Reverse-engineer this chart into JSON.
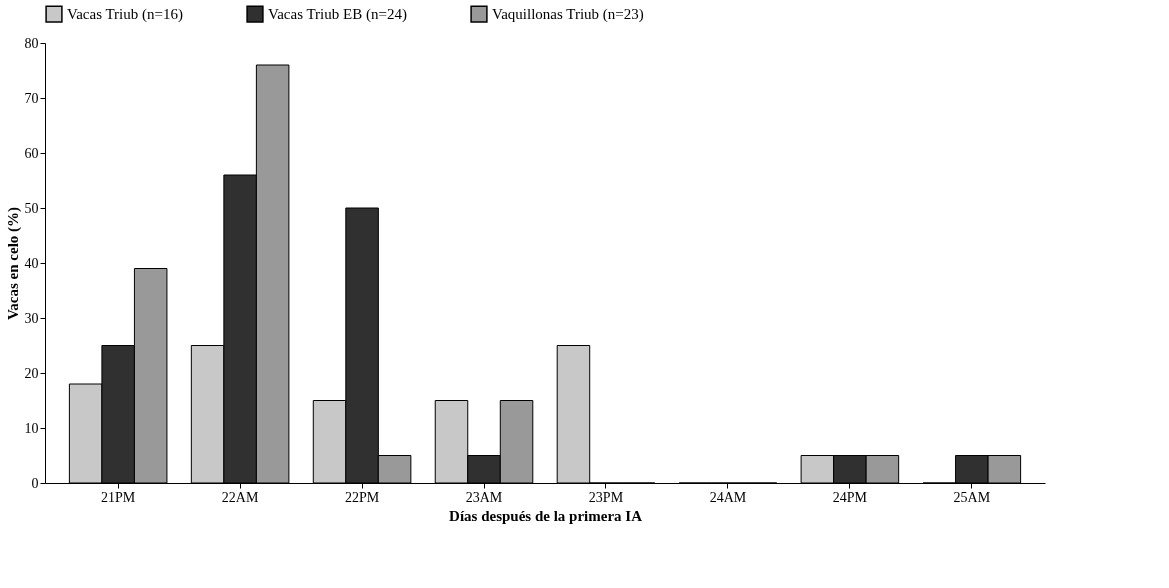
{
  "chart_data": {
    "type": "bar",
    "xlabel": "Días después de la primera IA",
    "ylabel": "Vacas en celo (%)",
    "categories": [
      "21PM",
      "22AM",
      "22PM",
      "23AM",
      "23PM",
      "24AM",
      "24PM",
      "25AM"
    ],
    "series": [
      {
        "name": "Vacas Triub (n=16)",
        "color": "#c8c8c8",
        "values": [
          18,
          25,
          15,
          15,
          25,
          0,
          5,
          0
        ]
      },
      {
        "name": "Vacas Triub EB (n=24)",
        "color": "#303030",
        "values": [
          25,
          56,
          50,
          5,
          0,
          0,
          5,
          5
        ]
      },
      {
        "name": "Vaquillonas Triub (n=23)",
        "color": "#999999",
        "values": [
          39,
          76,
          5,
          15,
          0,
          0,
          5,
          5
        ]
      }
    ],
    "ylim": [
      0,
      80
    ],
    "yticks": [
      0,
      10,
      20,
      30,
      40,
      50,
      60,
      70,
      80
    ],
    "grid": false,
    "legend": "top"
  }
}
